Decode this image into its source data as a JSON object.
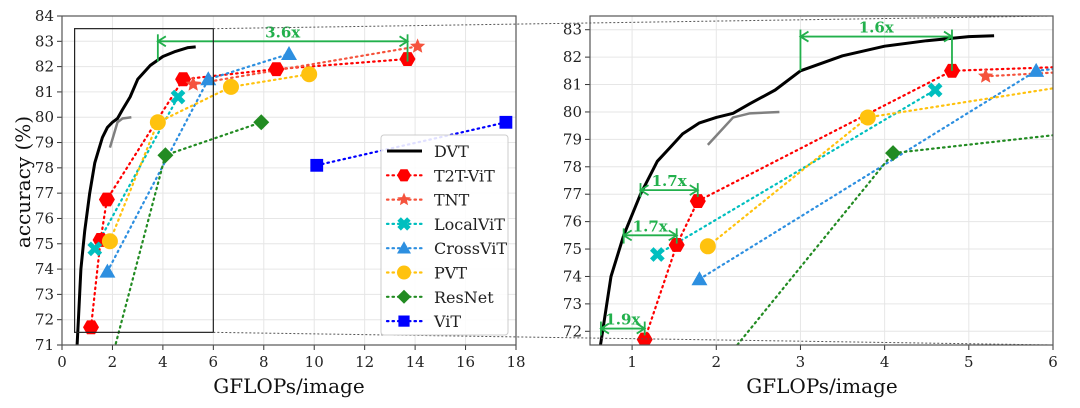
{
  "chart_data": [
    {
      "type": "line",
      "panel": "overview",
      "xlabel": "GFLOPs/image",
      "ylabel": "accuracy (%)",
      "xlim": [
        0,
        18
      ],
      "ylim": [
        71,
        84
      ],
      "xticks": [
        0,
        2,
        4,
        6,
        8,
        10,
        12,
        14,
        16,
        18
      ],
      "yticks": [
        71,
        72,
        73,
        74,
        75,
        76,
        77,
        78,
        79,
        80,
        81,
        82,
        83,
        84
      ],
      "grid": true,
      "legend_position": "lower-right",
      "zoom_box": {
        "x": [
          0.5,
          6
        ],
        "y": [
          71.5,
          83.5
        ]
      },
      "annotations": [
        {
          "text": "3.6x",
          "x_from": 3.8,
          "x_to": 13.7,
          "y": 83.0,
          "tick_low": 82.2
        }
      ]
    },
    {
      "type": "line",
      "panel": "zoomed",
      "xlabel": "GFLOPs/image",
      "ylabel": "",
      "xlim": [
        0.5,
        6
      ],
      "ylim": [
        71.5,
        83.5
      ],
      "xticks": [
        1,
        2,
        3,
        4,
        5,
        6
      ],
      "yticks": [
        72,
        73,
        74,
        75,
        76,
        77,
        78,
        79,
        80,
        81,
        82,
        83
      ],
      "grid": true,
      "annotations": [
        {
          "text": "1.6x",
          "x_from": 3.0,
          "x_to": 4.8,
          "y": 82.75,
          "tick_low": 81.5
        },
        {
          "text": "1.7x",
          "x_from": 1.1,
          "x_to": 1.78,
          "y": 77.15,
          "tick_low": 76.9
        },
        {
          "text": "1.7x",
          "x_from": 0.9,
          "x_to": 1.53,
          "y": 75.5,
          "tick_low": 75.2
        },
        {
          "text": "1.9x",
          "x_from": 0.63,
          "x_to": 1.15,
          "y": 72.1,
          "tick_low": 71.85
        }
      ]
    }
  ],
  "series": [
    {
      "name": "DVT",
      "color": "#000000",
      "marker": "none",
      "style": "solid",
      "x": [
        0.6,
        0.65,
        0.75,
        0.9,
        1.1,
        1.3,
        1.45,
        1.6,
        1.8,
        2.0,
        2.2,
        2.4,
        2.7,
        3.0,
        3.5,
        4.0,
        4.5,
        5.0,
        5.3
      ],
      "y": [
        71.0,
        72.0,
        74.0,
        75.5,
        77.0,
        78.2,
        78.7,
        79.2,
        79.6,
        79.8,
        79.95,
        80.3,
        80.8,
        81.5,
        82.05,
        82.4,
        82.6,
        82.75,
        82.78
      ]
    },
    {
      "name": "T2T-ViT",
      "color": "#ff0000",
      "marker": "hexagon",
      "style": "dotted",
      "x": [
        1.15,
        1.53,
        1.78,
        4.8,
        8.5,
        13.7
      ],
      "y": [
        71.7,
        75.15,
        76.75,
        81.5,
        81.9,
        82.3
      ]
    },
    {
      "name": "TNT",
      "color": "#f5533d",
      "marker": "star",
      "style": "dotted",
      "x": [
        5.2,
        14.1
      ],
      "y": [
        81.3,
        82.8
      ]
    },
    {
      "name": "LocalViT",
      "color": "#00bfbf",
      "marker": "x",
      "style": "dotted",
      "x": [
        1.3,
        4.6
      ],
      "y": [
        74.8,
        80.8
      ]
    },
    {
      "name": "CrossViT",
      "color": "#2d8fe0",
      "marker": "triangle",
      "style": "dotted",
      "x": [
        1.8,
        5.8,
        9.0
      ],
      "y": [
        73.9,
        81.5,
        82.5
      ]
    },
    {
      "name": "PVT",
      "color": "#ffc20e",
      "marker": "circle",
      "style": "dotted",
      "x": [
        1.9,
        3.8,
        6.7,
        9.8
      ],
      "y": [
        75.1,
        79.8,
        81.2,
        81.7
      ]
    },
    {
      "name": "ResNet",
      "color": "#228b22",
      "marker": "diamond",
      "style": "dotted",
      "x": [
        1.8,
        4.1,
        7.9
      ],
      "y": [
        69.8,
        78.5,
        79.8
      ]
    },
    {
      "name": "ViT",
      "color": "#0000ff",
      "marker": "square",
      "style": "dotted",
      "x": [
        10.1,
        17.6
      ],
      "y": [
        78.1,
        79.8
      ]
    }
  ],
  "secondary_curve": {
    "color": "#808080",
    "x": [
      1.9,
      2.2,
      2.4,
      2.75
    ],
    "y": [
      78.8,
      79.8,
      79.95,
      80.0
    ]
  },
  "annotation_color": "#22b04c"
}
